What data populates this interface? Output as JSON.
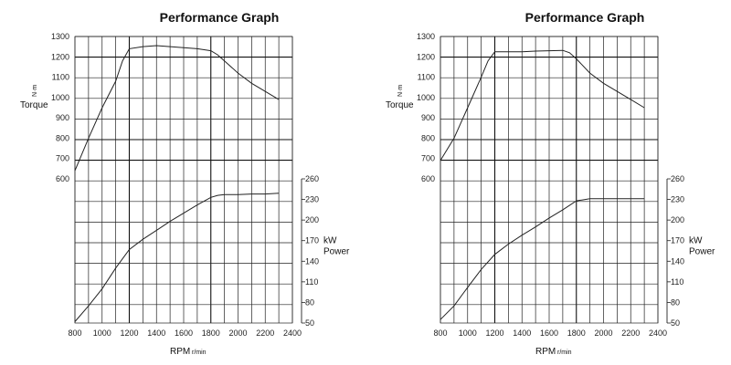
{
  "chart_data": [
    {
      "type": "line",
      "title": "Performance Graph",
      "xlabel": "RPM",
      "xunit": "r/min",
      "x_ticks": [
        800,
        1000,
        1200,
        1400,
        1600,
        1800,
        2000,
        2200,
        2400
      ],
      "xlim": [
        800,
        2400
      ],
      "torque_label": "Torque",
      "torque_unit": "N·m",
      "torque_ticks": [
        600,
        700,
        800,
        900,
        1000,
        1100,
        1200,
        1300
      ],
      "torque_ylim": [
        600,
        1300
      ],
      "power_label": "kW\nPower",
      "power_ticks": [
        50,
        80,
        110,
        140,
        170,
        200,
        230,
        260
      ],
      "power_ylim": [
        50,
        260
      ],
      "series": [
        {
          "name": "Torque",
          "x": [
            800,
            900,
            1000,
            1100,
            1150,
            1200,
            1300,
            1400,
            1500,
            1600,
            1700,
            1800,
            1850,
            1900,
            2000,
            2100,
            2200,
            2300
          ],
          "values": [
            640,
            800,
            950,
            1080,
            1180,
            1240,
            1250,
            1255,
            1250,
            1245,
            1240,
            1230,
            1210,
            1180,
            1120,
            1070,
            1030,
            990
          ]
        },
        {
          "name": "Power",
          "x": [
            800,
            900,
            1000,
            1100,
            1200,
            1300,
            1400,
            1500,
            1600,
            1700,
            1800,
            1850,
            1900,
            2000,
            2100,
            2200,
            2300
          ],
          "values": [
            52,
            75,
            100,
            130,
            157,
            172,
            185,
            198,
            210,
            222,
            233,
            236,
            237,
            237,
            238,
            238,
            239
          ]
        }
      ]
    },
    {
      "type": "line",
      "title": "Performance Graph",
      "xlabel": "RPM",
      "xunit": "r/min",
      "x_ticks": [
        800,
        1000,
        1200,
        1400,
        1600,
        1800,
        2000,
        2200,
        2400
      ],
      "xlim": [
        800,
        2400
      ],
      "torque_label": "Torque",
      "torque_unit": "N·m",
      "torque_ticks": [
        600,
        700,
        800,
        900,
        1000,
        1100,
        1200,
        1300
      ],
      "torque_ylim": [
        600,
        1300
      ],
      "power_label": "kW\nPower",
      "power_ticks": [
        50,
        80,
        110,
        140,
        170,
        200,
        230,
        260
      ],
      "power_ylim": [
        50,
        260
      ],
      "series": [
        {
          "name": "Torque",
          "x": [
            800,
            900,
            1000,
            1100,
            1150,
            1200,
            1300,
            1400,
            1500,
            1600,
            1700,
            1750,
            1800,
            1900,
            2000,
            2100,
            2200,
            2300
          ],
          "values": [
            690,
            800,
            950,
            1100,
            1180,
            1225,
            1225,
            1225,
            1228,
            1230,
            1232,
            1220,
            1190,
            1120,
            1070,
            1030,
            990,
            950
          ]
        },
        {
          "name": "Power",
          "x": [
            800,
            900,
            1000,
            1100,
            1200,
            1300,
            1400,
            1500,
            1600,
            1700,
            1800,
            1900,
            2000,
            2100,
            2200,
            2300
          ],
          "values": [
            55,
            75,
            102,
            128,
            150,
            165,
            178,
            190,
            203,
            215,
            228,
            231,
            231,
            231,
            231,
            231
          ]
        }
      ]
    }
  ]
}
